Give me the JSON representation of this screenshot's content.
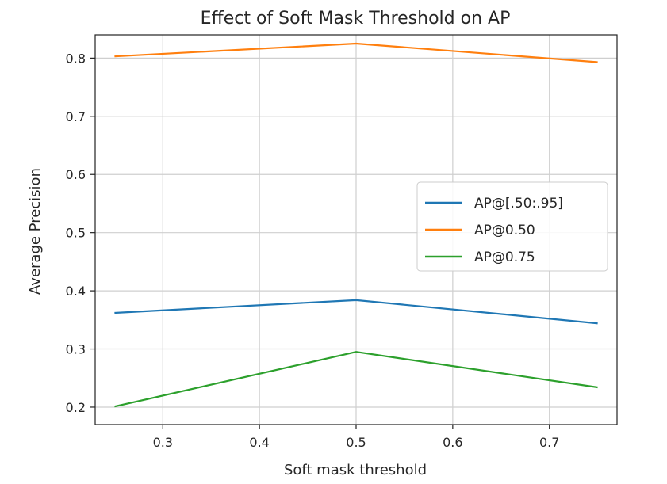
{
  "chart_data": {
    "type": "line",
    "title": "Effect of Soft Mask Threshold on AP",
    "xlabel": "Soft mask threshold",
    "ylabel": "Average Precision",
    "x": [
      0.25,
      0.5,
      0.75
    ],
    "xlim": [
      0.23,
      0.77
    ],
    "ylim": [
      0.17,
      0.84
    ],
    "xticks": [
      0.3,
      0.4,
      0.5,
      0.6,
      0.7
    ],
    "xtick_labels": [
      "0.3",
      "0.4",
      "0.5",
      "0.6",
      "0.7"
    ],
    "yticks": [
      0.2,
      0.3,
      0.4,
      0.5,
      0.6,
      0.7,
      0.8
    ],
    "ytick_labels": [
      "0.2",
      "0.3",
      "0.4",
      "0.5",
      "0.6",
      "0.7",
      "0.8"
    ],
    "grid": true,
    "legend_position": "center-right",
    "series": [
      {
        "name": "AP@[.50:.95]",
        "values": [
          0.362,
          0.384,
          0.344
        ],
        "color": "#1f77b4"
      },
      {
        "name": "AP@0.50",
        "values": [
          0.803,
          0.825,
          0.793
        ],
        "color": "#ff7f0e"
      },
      {
        "name": "AP@0.75",
        "values": [
          0.201,
          0.295,
          0.234
        ],
        "color": "#2ca02c"
      }
    ]
  }
}
